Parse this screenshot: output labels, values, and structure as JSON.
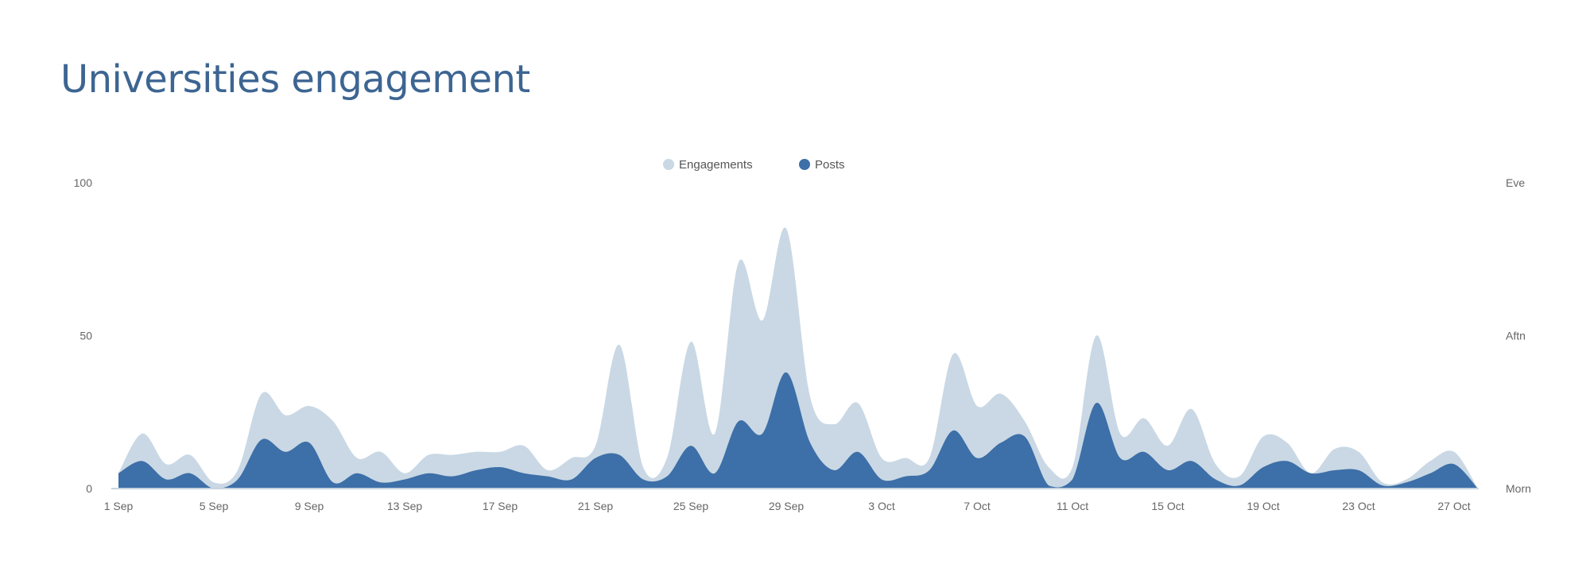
{
  "header": {
    "title": "Universities engagement"
  },
  "colors": {
    "engagements": "#c9d8e4",
    "posts": "#3d6fa8",
    "title": "#3d6592"
  },
  "chart_data": {
    "type": "area",
    "title": "Universities engagement",
    "legend": {
      "placement": "top-center",
      "entries": [
        "Engagements",
        "Posts"
      ]
    },
    "x_start": "1 Sep",
    "x_tick_labels": [
      "1 Sep",
      "5 Sep",
      "9 Sep",
      "13 Sep",
      "17 Sep",
      "21 Sep",
      "25 Sep",
      "29 Sep",
      "3 Oct",
      "7 Oct",
      "11 Oct",
      "15 Oct",
      "19 Oct",
      "23 Oct",
      "27 Oct"
    ],
    "x_tick_every_days": 4,
    "y_left": {
      "ticks": [
        "0",
        "50",
        "100"
      ],
      "range": [
        0,
        100
      ]
    },
    "y_right": {
      "ticks": [
        "Morn",
        "Aftn",
        "Eve"
      ]
    },
    "grid": false,
    "series": [
      {
        "name": "Engagements",
        "values": [
          5,
          18,
          8,
          11,
          2,
          6,
          31,
          24,
          27,
          22,
          10,
          12,
          5,
          11,
          11,
          12,
          12,
          14,
          6,
          10,
          14,
          47,
          7,
          10,
          48,
          18,
          74,
          55,
          85,
          30,
          21,
          28,
          10,
          10,
          10,
          44,
          27,
          31,
          22,
          7,
          7,
          50,
          18,
          23,
          14,
          26,
          8,
          4,
          17,
          15,
          5,
          13,
          12,
          2,
          3,
          9,
          12,
          0
        ]
      },
      {
        "name": "Posts",
        "values": [
          5,
          9,
          3,
          5,
          0,
          3,
          16,
          12,
          15,
          2,
          5,
          2,
          3,
          5,
          4,
          6,
          7,
          5,
          4,
          3,
          10,
          11,
          3,
          4,
          14,
          5,
          22,
          18,
          38,
          15,
          6,
          12,
          3,
          4,
          6,
          19,
          10,
          15,
          17,
          1,
          3,
          28,
          10,
          12,
          6,
          9,
          3,
          1,
          7,
          9,
          5,
          6,
          6,
          1,
          2,
          5,
          8,
          0
        ]
      }
    ]
  }
}
